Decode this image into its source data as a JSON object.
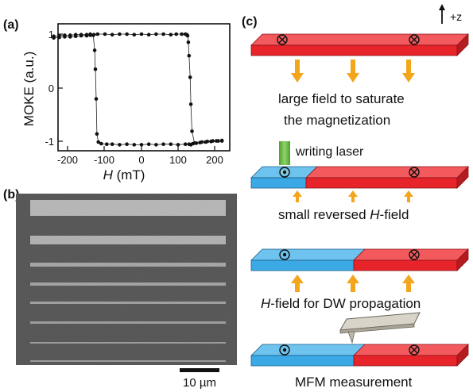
{
  "panel_a": {
    "label": "(a)",
    "ylabel": "MOKE (a.u.)",
    "xlabel_italic": "H",
    "xlabel_rest": " (mT)",
    "y_ticks": [
      "1",
      "0",
      "-1"
    ],
    "x_ticks": [
      "-200",
      "-100",
      "0",
      "100",
      "200"
    ],
    "chart_data": {
      "type": "scatter",
      "xlabel": "H (mT)",
      "ylabel": "MOKE (a.u.)",
      "xlim": [
        -240,
        240
      ],
      "ylim": [
        -1.15,
        1.15
      ],
      "grid": false,
      "series": [
        {
          "x": [
            -240,
            -225,
            -210,
            -195,
            -180,
            -165,
            -150,
            -140,
            -132,
            -128,
            -126,
            -124,
            -122,
            -118,
            -110,
            -95,
            -80,
            -60,
            -40,
            -20,
            0,
            20,
            40,
            60,
            80,
            100,
            120,
            130,
            135,
            140,
            150,
            165,
            180,
            195,
            210,
            220
          ],
          "y": [
            0.93,
            0.94,
            0.95,
            0.95,
            0.96,
            0.97,
            0.97,
            0.98,
            0.98,
            0.7,
            0.35,
            -0.2,
            -0.85,
            -1.0,
            -1.03,
            -1.04,
            -1.04,
            -1.05,
            -1.04,
            -1.05,
            -1.05,
            -1.04,
            -1.05,
            -1.04,
            -1.04,
            -1.05,
            -1.04,
            -1.04,
            -1.05,
            -1.03,
            -1.02,
            -1.0,
            -0.99,
            -0.98,
            -0.98,
            -0.97
          ]
        },
        {
          "x": [
            220,
            205,
            190,
            175,
            160,
            145,
            138,
            135,
            133,
            130,
            128,
            126,
            124,
            120,
            110,
            95,
            80,
            60,
            40,
            20,
            0,
            -20,
            -40,
            -60,
            -80,
            -100,
            -120,
            -130,
            -140,
            -150,
            -165,
            -180,
            -195,
            -210,
            -225,
            -240
          ],
          "y": [
            -0.98,
            -0.98,
            -0.99,
            -1.0,
            -1.01,
            -1.02,
            -0.8,
            -0.3,
            0.2,
            0.6,
            0.85,
            0.97,
            0.99,
            1.0,
            1.0,
            1.0,
            0.99,
            1.0,
            1.0,
            0.99,
            1.0,
            0.99,
            1.0,
            1.0,
            0.99,
            1.0,
            1.0,
            0.99,
            1.0,
            0.99,
            0.99,
            0.99,
            0.98,
            0.98,
            0.97,
            0.96
          ]
        }
      ]
    }
  },
  "panel_b": {
    "label": "(b)",
    "scalebar": "10 µm"
  },
  "panel_c": {
    "label": "(c)",
    "axis": "+z",
    "step1_line1": "large field to saturate",
    "step1_line2": "the magnetization",
    "step2_laser": "writing laser",
    "step2_text_pre": "small reversed ",
    "step2_text_italic": "H",
    "step2_text_post": "-field",
    "step3_text_italic": "H",
    "step3_text_post": "-field for DW propagation",
    "step4_text": "MFM measurement",
    "colors": {
      "red_domain": "#e8242b",
      "blue_domain": "#3aa9e6",
      "arrow": "#f3a51b",
      "laser": "#6fc04b"
    }
  }
}
